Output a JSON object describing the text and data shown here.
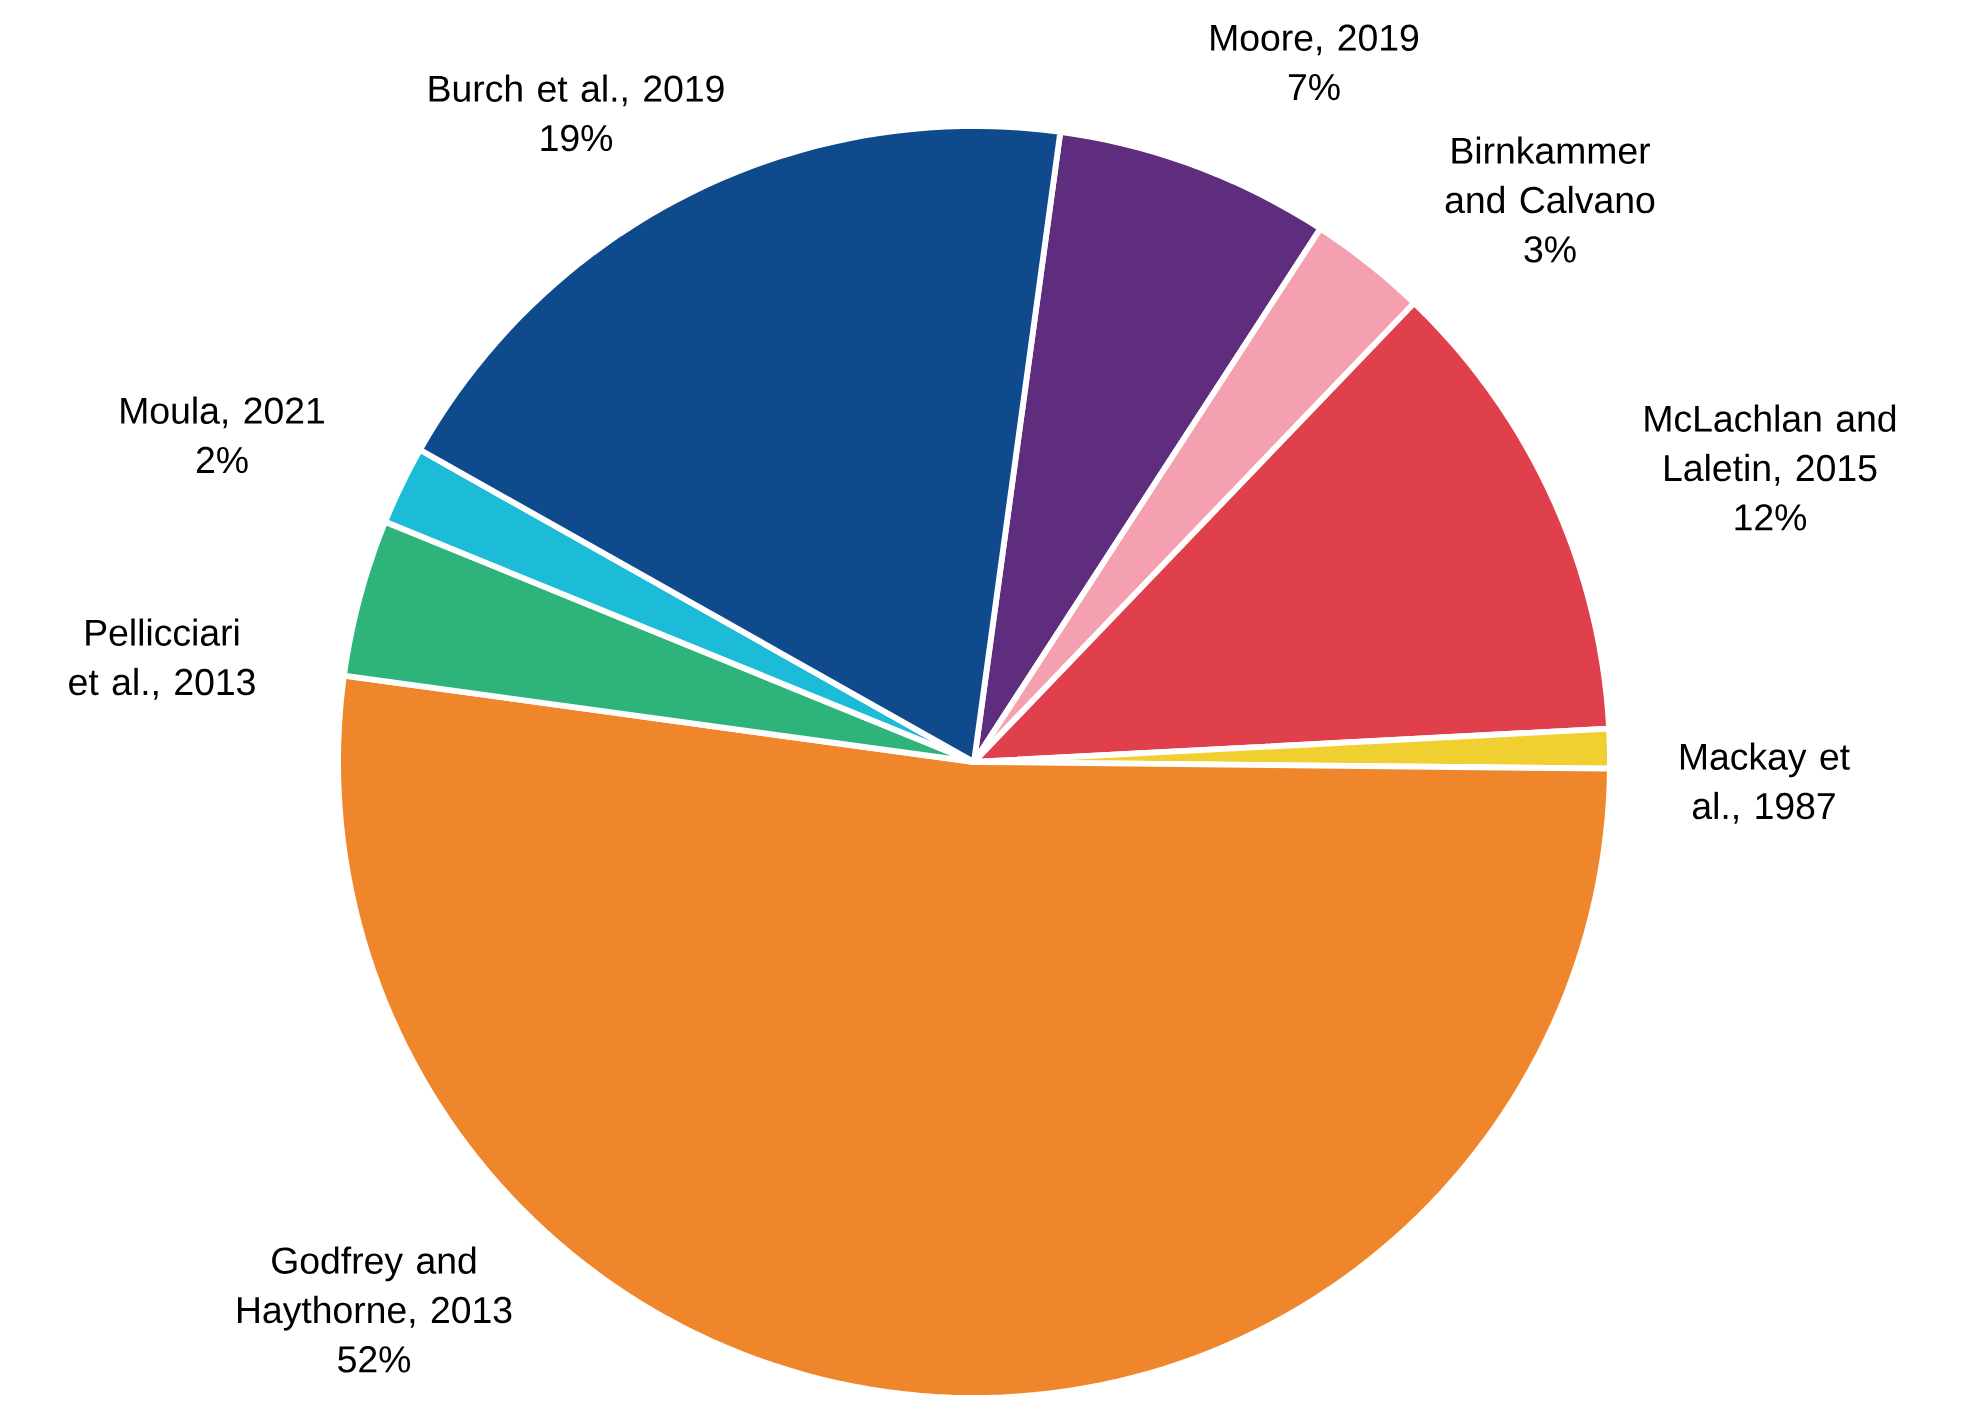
{
  "chart_data": {
    "type": "pie",
    "categories": [
      "Moore, 2019",
      "Birnkammer and Calvano",
      "McLachlan and Laletin, 2015",
      "Mackay et al., 1987",
      "Godfrey and Haythorne, 2013",
      "Pellicciari et al., 2013",
      "Moula, 2021",
      "Burch et al., 2019"
    ],
    "values": [
      7,
      3,
      12,
      1,
      52,
      4,
      2,
      19
    ],
    "colors": [
      "#5e2d7d",
      "#f5a0b0",
      "#e0404c",
      "#f0d030",
      "#f0862c",
      "#2eb47a",
      "#1cbcd8",
      "#0f4a8c"
    ],
    "value_labels": [
      "7%",
      "3%",
      "12%",
      null,
      "52%",
      null,
      "2%",
      "19%"
    ]
  }
}
